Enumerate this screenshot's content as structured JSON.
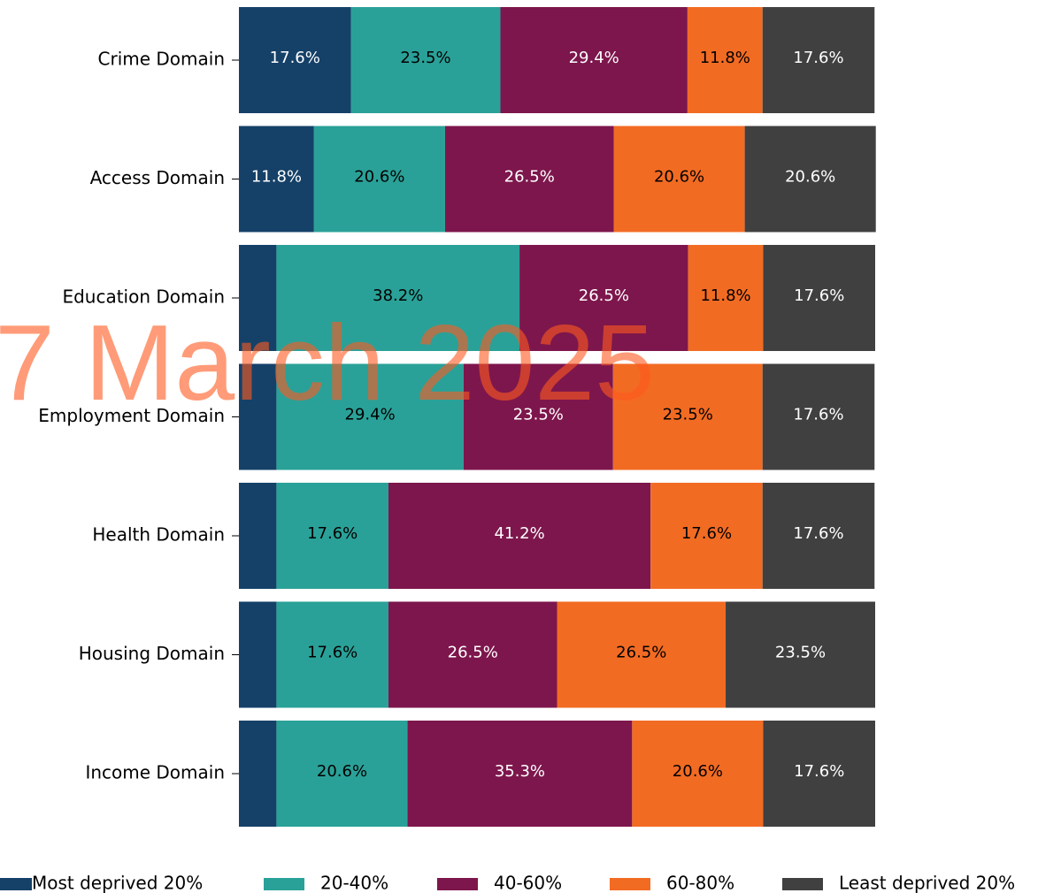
{
  "chart_data": {
    "type": "stacked-barh",
    "categories": [
      "Crime Domain",
      "Access Domain",
      "Education Domain",
      "Employment Domain",
      "Health Domain",
      "Housing Domain",
      "Income Domain"
    ],
    "xlim": [
      0,
      100
    ],
    "legend": "bottom",
    "series": [
      {
        "name": "Most deprived 20%",
        "color": "#154168",
        "values": [
          17.6,
          11.8,
          5.9,
          5.9,
          5.9,
          5.9,
          5.9
        ],
        "value_labels": [
          "17.6%",
          "11.8%",
          null,
          null,
          null,
          null,
          null
        ]
      },
      {
        "name": "20-40%",
        "color": "#2aa198",
        "values": [
          23.5,
          20.6,
          38.2,
          29.4,
          17.6,
          17.6,
          20.6
        ],
        "value_labels": [
          "23.5%",
          "20.6%",
          "38.2%",
          "29.4%",
          "17.6%",
          "17.6%",
          "20.6%"
        ]
      },
      {
        "name": "40-60%",
        "color": "#7d164c",
        "values": [
          29.4,
          26.5,
          26.5,
          23.5,
          41.2,
          26.5,
          35.3
        ],
        "value_labels": [
          "29.4%",
          "26.5%",
          "26.5%",
          "23.5%",
          "41.2%",
          "26.5%",
          "35.3%"
        ]
      },
      {
        "name": "60-80%",
        "color": "#f26b23",
        "values": [
          11.8,
          20.6,
          11.8,
          23.5,
          17.6,
          26.5,
          20.6
        ],
        "value_labels": [
          "11.8%",
          "20.6%",
          "11.8%",
          "23.5%",
          "17.6%",
          "26.5%",
          "20.6%"
        ]
      },
      {
        "name": "Least deprived 20%",
        "color": "#404040",
        "values": [
          17.6,
          20.6,
          17.6,
          17.6,
          17.6,
          23.5,
          17.6
        ],
        "value_labels": [
          "17.6%",
          "20.6%",
          "17.6%",
          "17.6%",
          "17.6%",
          "23.5%",
          "17.6%"
        ]
      }
    ],
    "watermark": "7 March 2025"
  }
}
